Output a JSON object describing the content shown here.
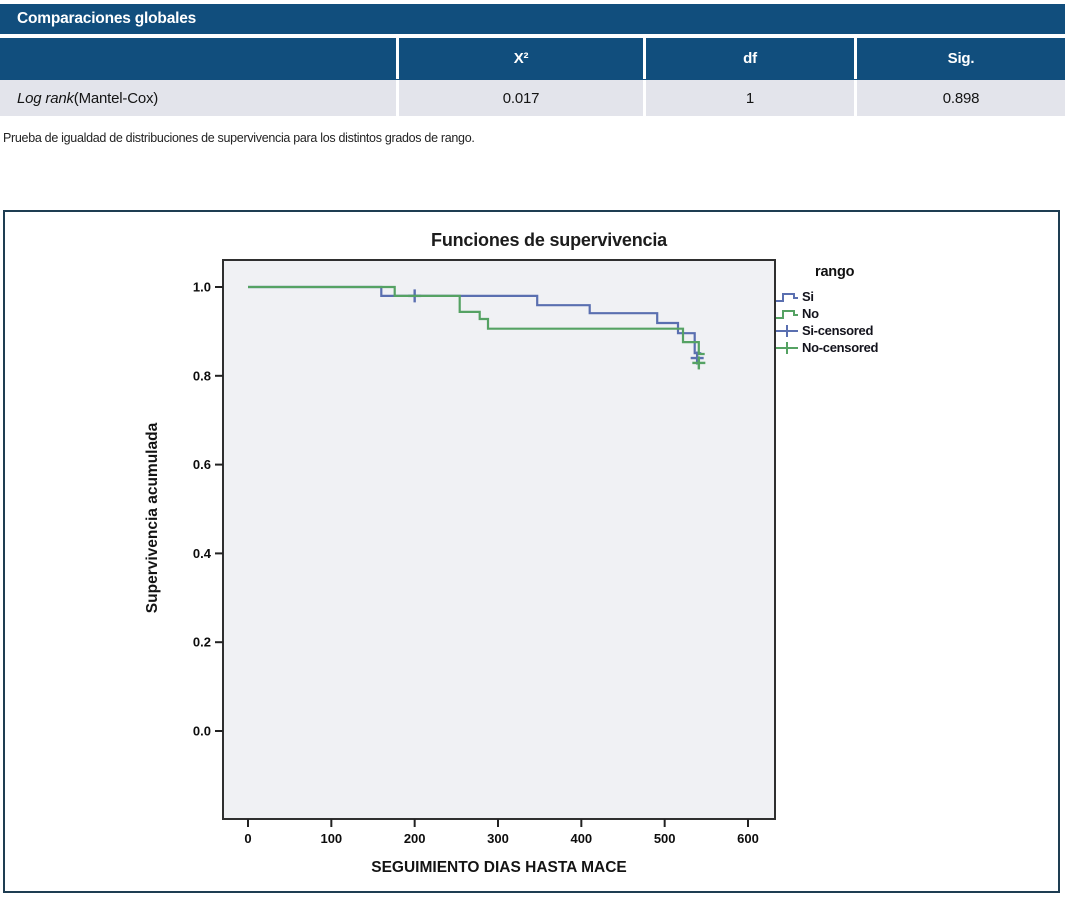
{
  "table": {
    "title": "Comparaciones globales",
    "columns": {
      "stat": "X²",
      "df": "df",
      "sig": "Sig."
    },
    "row": {
      "label_italic": "Log rank",
      "label_rest": " (Mantel-Cox)",
      "stat": "0.017",
      "df": "1",
      "sig": "0.898"
    }
  },
  "footnote": "Prueba de igualdad de distribuciones de supervivencia para los distintos grados de rango.",
  "chart_data": {
    "type": "line",
    "subtype": "kaplan-meier-step",
    "title": "Funciones de supervivencia",
    "xlabel": "SEGUIMIENTO DIAS HASTA MACE",
    "ylabel": "Supervivencia acumulada",
    "xlim": [
      -35,
      630
    ],
    "ylim": [
      -0.2,
      1.06
    ],
    "x_ticks": [
      0,
      100,
      200,
      300,
      400,
      500,
      600
    ],
    "y_ticks": [
      {
        "value": 1.0,
        "label": "1.0"
      },
      {
        "value": 0.8,
        "label": "0.8"
      },
      {
        "value": 0.6,
        "label": "0.6"
      },
      {
        "value": 0.4,
        "label": "0.4"
      },
      {
        "value": 0.2,
        "label": "0.2"
      },
      {
        "value": 0.0,
        "label": "0.0"
      }
    ],
    "grid": false,
    "legend_position": "upper-right-outside",
    "legend_title": "rango",
    "series": [
      {
        "name": "Si",
        "censored_name": "Si-censored",
        "color": "#5a6fb0",
        "steps": [
          [
            0,
            1.0
          ],
          [
            160,
            1.0
          ],
          [
            160,
            0.98
          ],
          [
            347,
            0.98
          ],
          [
            347,
            0.959
          ],
          [
            410,
            0.959
          ],
          [
            410,
            0.941
          ],
          [
            491,
            0.941
          ],
          [
            491,
            0.919
          ],
          [
            516,
            0.919
          ],
          [
            516,
            0.896
          ],
          [
            536,
            0.896
          ],
          [
            536,
            0.851
          ],
          [
            544,
            0.851
          ]
        ],
        "censored": [
          [
            200,
            0.98
          ],
          [
            539,
            0.84
          ]
        ]
      },
      {
        "name": "No",
        "censored_name": "No-censored",
        "color": "#55a263",
        "steps": [
          [
            0,
            1.0
          ],
          [
            176,
            1.0
          ],
          [
            176,
            0.98
          ],
          [
            254,
            0.98
          ],
          [
            254,
            0.944
          ],
          [
            278,
            0.944
          ],
          [
            278,
            0.928
          ],
          [
            288,
            0.928
          ],
          [
            288,
            0.906
          ],
          [
            522,
            0.906
          ],
          [
            522,
            0.876
          ],
          [
            541,
            0.876
          ],
          [
            541,
            0.849
          ],
          [
            548,
            0.849
          ]
        ],
        "censored": [
          [
            541,
            0.829
          ]
        ]
      }
    ]
  },
  "colors": {
    "header_blue": "#114e7d",
    "row_bg": "#e3e4eb",
    "plot_bg": "#f0f1f4",
    "plot_border": "#2f2f2f",
    "chart_box_border": "#1e3d52",
    "si_blue": "#5a6fb0",
    "no_green": "#55a263"
  }
}
